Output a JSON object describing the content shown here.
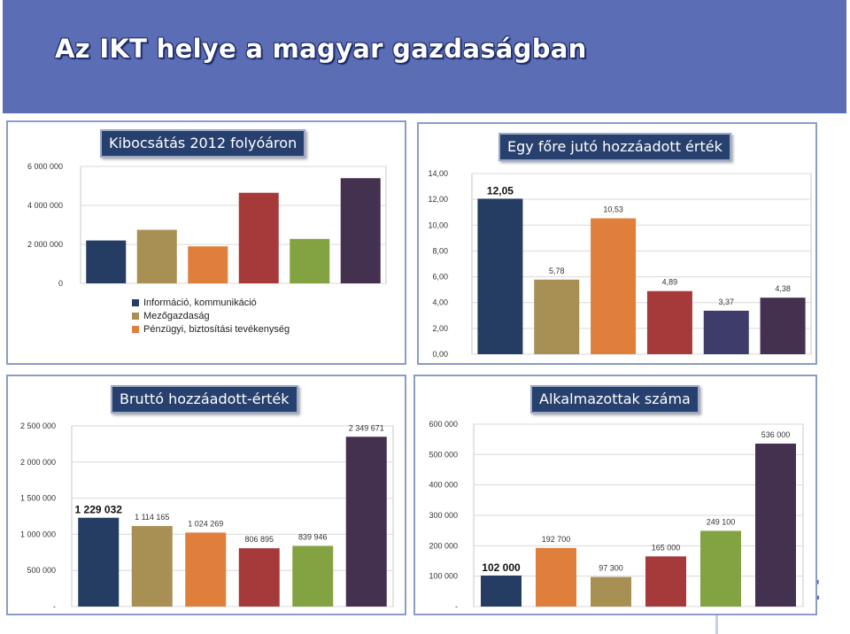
{
  "slide": {
    "title": "Az IKT helye a magyar gazdaságban",
    "logo_fragment": "SZ"
  },
  "chart_data": [
    {
      "id": "kibocsatas",
      "type": "bar",
      "title": "Kibocsátás  2012 folyóáron",
      "categories": [
        "Információ, kommunikáció",
        "Mezőgazdaság",
        "Pénzügyi, biztosítási tevékenység",
        "",
        "",
        ""
      ],
      "values": [
        2200000,
        2750000,
        1900000,
        4650000,
        2280000,
        5400000
      ],
      "colors": [
        "#253d63",
        "#a89054",
        "#e07f3c",
        "#a63a3a",
        "#83a343",
        "#44304f"
      ],
      "yticks": [
        "0",
        "2 000 000",
        "4 000 000",
        "6 000 000"
      ],
      "ylim": [
        0,
        6000000
      ],
      "legend": [
        "Információ, kommunikáció",
        "Mezőgazdaság",
        "Pénzügyi, biztosítási tevékenység"
      ],
      "data_labels": []
    },
    {
      "id": "egy-fore",
      "type": "bar",
      "title": "Egy főre jutó hozzáadott érték",
      "values": [
        12.05,
        5.78,
        10.53,
        4.89,
        3.37,
        4.38
      ],
      "colors": [
        "#253d63",
        "#a89054",
        "#e07f3c",
        "#a63a3a",
        "#3d3c6b",
        "#44304f"
      ],
      "yticks": [
        "0,00",
        "2,00",
        "4,00",
        "6,00",
        "8,00",
        "10,00",
        "12,00",
        "14,00"
      ],
      "ylim": [
        0,
        14
      ],
      "data_labels": [
        "12,05",
        "5,78",
        "10,53",
        "4,89",
        "3,37",
        "4,38"
      ]
    },
    {
      "id": "brutto",
      "type": "bar",
      "title": "Bruttó hozzáadott-érték",
      "values": [
        1229032,
        1114165,
        1024269,
        806895,
        839946,
        2349671
      ],
      "colors": [
        "#253d63",
        "#a89054",
        "#e07f3c",
        "#a63a3a",
        "#83a343",
        "#44304f"
      ],
      "yticks": [
        "-",
        "500 000",
        "1 000 000",
        "1 500 000",
        "2 000 000",
        "2 500 000"
      ],
      "ylim": [
        0,
        2500000
      ],
      "data_labels": [
        "1 229 032",
        "1 114 165",
        "1 024 269",
        "806 895",
        "839 946",
        "2 349 671"
      ]
    },
    {
      "id": "alkalmazottak",
      "type": "bar",
      "title": "Alkalmazottak száma",
      "values": [
        102000,
        192700,
        97300,
        165000,
        249100,
        536000
      ],
      "colors": [
        "#253d63",
        "#e07f3c",
        "#a89054",
        "#a63a3a",
        "#83a343",
        "#44304f"
      ],
      "yticks": [
        "-",
        "100 000",
        "200 000",
        "300 000",
        "400 000",
        "500 000",
        "600 000"
      ],
      "ylim": [
        0,
        600000
      ],
      "data_labels": [
        "102 000",
        "192 700",
        "97 300",
        "165 000",
        "249 100",
        "536 000"
      ]
    }
  ]
}
